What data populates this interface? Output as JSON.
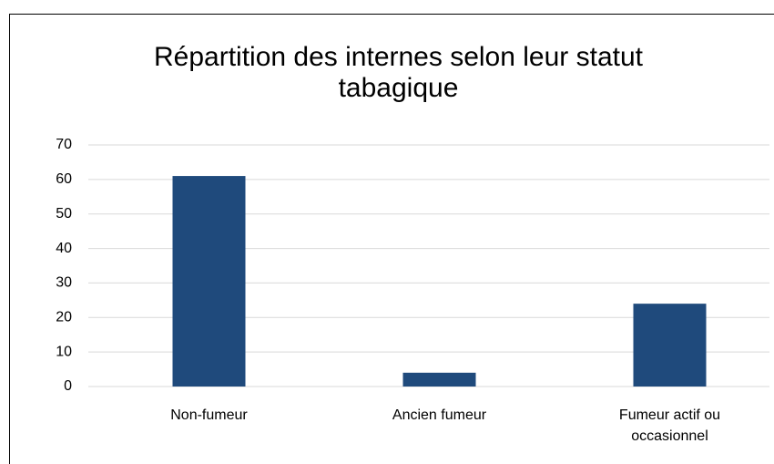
{
  "chart_data": {
    "type": "bar",
    "title": "Répartition des internes selon leur statut tabagique",
    "categories": [
      "Non-fumeur",
      "Ancien fumeur",
      "Fumeur actif ou occasionnel"
    ],
    "values": [
      61,
      4,
      24
    ],
    "color": "#1f4a7c",
    "ylim": [
      0,
      70
    ],
    "yticks": [
      0,
      10,
      20,
      30,
      40,
      50,
      60,
      70
    ],
    "grid": true
  }
}
